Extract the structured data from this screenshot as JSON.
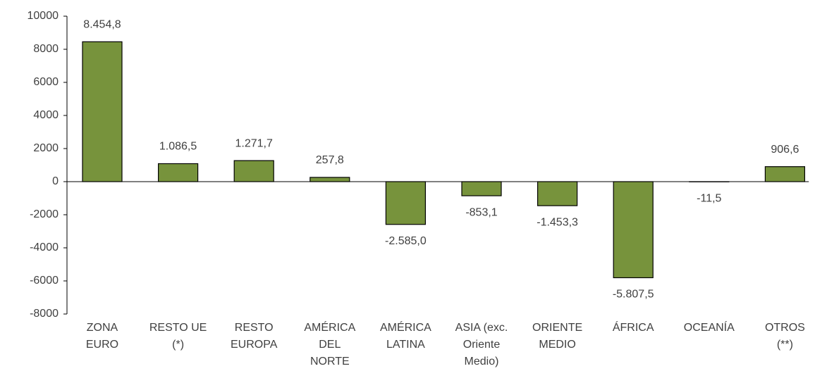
{
  "chart_data": {
    "type": "bar",
    "categories": [
      "ZONA\nEURO",
      "RESTO UE\n(*)",
      "RESTO\nEUROPA",
      "AMÉRICA\nDEL\nNORTE",
      "AMÉRICA\nLATINA",
      "ASIA (exc.\nOriente\nMedio)",
      "ORIENTE\nMEDIO",
      "ÁFRICA",
      "OCEANÍA",
      "OTROS\n(**)"
    ],
    "values": [
      8454.8,
      1086.5,
      1271.7,
      257.8,
      -2585.0,
      -853.1,
      -1453.3,
      -5807.5,
      -11.5,
      906.6
    ],
    "value_labels": [
      "8.454,8",
      "1.086,5",
      "1.271,7",
      "257,8",
      "-2.585,0",
      "-853,1",
      "-1.453,3",
      "-5.807,5",
      "-11,5",
      "906,6"
    ],
    "color": "#77933c",
    "ylim": [
      -8000,
      10000
    ],
    "yticks": [
      -8000,
      -6000,
      -4000,
      -2000,
      0,
      2000,
      4000,
      6000,
      8000,
      10000
    ],
    "grid": false
  }
}
